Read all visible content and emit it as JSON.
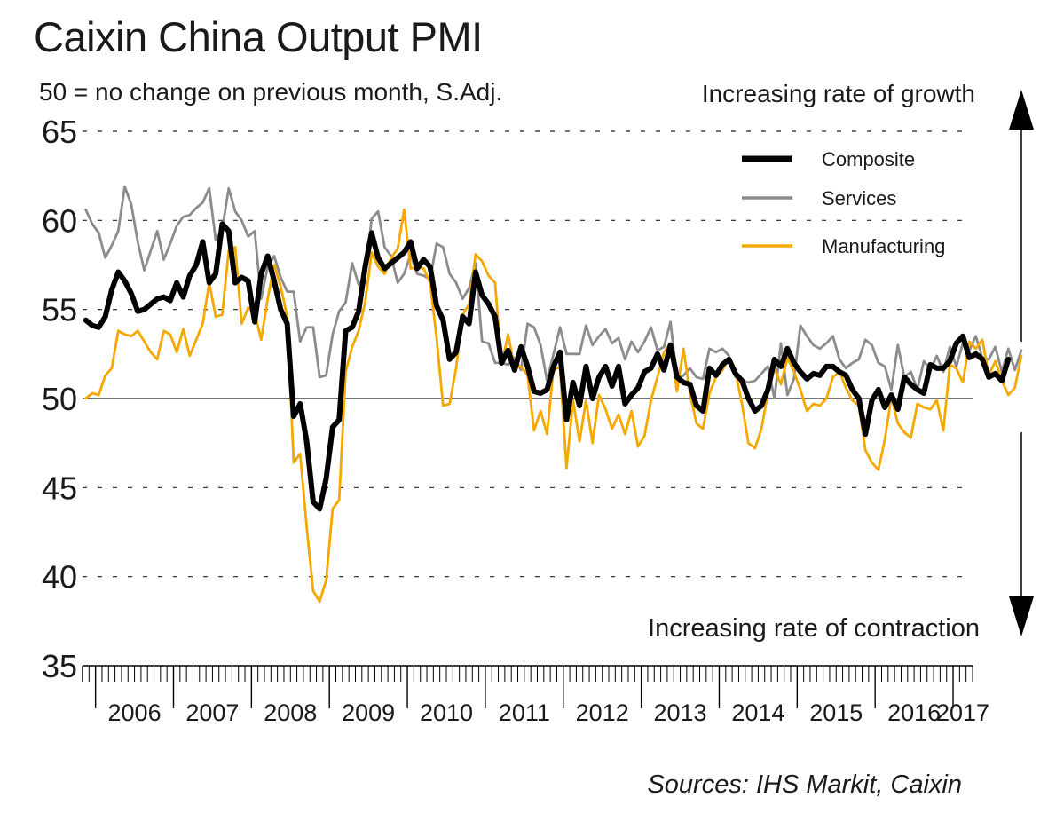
{
  "chart_data": {
    "type": "line",
    "title": "Caixin China Output PMI",
    "subtitle": "50 = no change on previous month, S.Adj.",
    "annotation_up": "Increasing rate of growth",
    "annotation_down": "Increasing rate of contraction",
    "source": "Sources: IHS Markit, Caixin",
    "xlabel": "",
    "ylabel": "",
    "ylim": [
      35,
      65
    ],
    "yticks": [
      35,
      40,
      45,
      50,
      55,
      60,
      65
    ],
    "reference_line": 50,
    "x_start": "2005-11",
    "x_end": "2017-03",
    "year_labels": [
      "2006",
      "2007",
      "2008",
      "2009",
      "2010",
      "2011",
      "2012",
      "2013",
      "2014",
      "2015",
      "2016",
      "2017"
    ],
    "legend": [
      "Composite",
      "Services",
      "Manufacturing"
    ],
    "legend_position": "top-right",
    "colors": {
      "Composite": "#000000",
      "Services": "#8c8c8c",
      "Manufacturing": "#f5a800",
      "grid": "#333333"
    },
    "series": [
      {
        "name": "Composite",
        "values": [
          54.4,
          54.1,
          54.0,
          54.6,
          56.1,
          57.1,
          56.6,
          55.9,
          54.9,
          55.0,
          55.3,
          55.6,
          55.7,
          55.5,
          56.5,
          55.7,
          56.9,
          57.5,
          58.8,
          56.5,
          57.0,
          59.8,
          59.4,
          56.5,
          56.8,
          56.6,
          54.3,
          57.0,
          58.0,
          56.6,
          55.0,
          54.2,
          49.0,
          49.7,
          47.6,
          44.2,
          43.8,
          45.5,
          48.4,
          48.8,
          53.8,
          54.0,
          54.9,
          57.4,
          59.3,
          57.9,
          57.3,
          57.6,
          57.9,
          58.2,
          58.8,
          57.3,
          57.8,
          57.4,
          55.2,
          54.4,
          52.2,
          52.6,
          54.6,
          54.2,
          57.1,
          55.8,
          55.3,
          54.6,
          52.0,
          52.7,
          51.6,
          52.9,
          51.8,
          50.4,
          50.3,
          50.5,
          51.8,
          52.6,
          48.8,
          50.9,
          49.6,
          51.8,
          50.0,
          51.2,
          51.8,
          50.7,
          51.8,
          49.7,
          50.2,
          50.6,
          51.5,
          51.7,
          52.5,
          51.6,
          53.0,
          51.2,
          50.9,
          50.8,
          49.6,
          49.3,
          51.7,
          51.3,
          51.9,
          52.2,
          51.4,
          51.0,
          50.0,
          49.3,
          49.6,
          50.5,
          52.2,
          51.8,
          52.8,
          52.0,
          51.5,
          51.1,
          51.4,
          51.3,
          51.8,
          51.8,
          51.5,
          51.3,
          50.5,
          50.0,
          48.0,
          49.9,
          50.5,
          49.5,
          50.2,
          49.4,
          51.2,
          50.8,
          50.5,
          50.3,
          51.9,
          51.7,
          51.7,
          52.1,
          53.1,
          53.5,
          52.3,
          52.5,
          52.2,
          51.2,
          51.4,
          51.0,
          52.2
        ]
      },
      {
        "name": "Services",
        "values": [
          60.6,
          59.8,
          59.3,
          57.9,
          58.6,
          59.4,
          61.9,
          60.9,
          58.8,
          57.2,
          58.3,
          59.4,
          57.8,
          58.7,
          59.7,
          60.2,
          60.3,
          60.7,
          61.0,
          61.8,
          58.9,
          59.5,
          61.8,
          60.5,
          60.0,
          59.1,
          59.4,
          55.6,
          57.4,
          58.0,
          56.8,
          56.0,
          56.0,
          53.2,
          54.0,
          54.0,
          51.2,
          51.3,
          53.6,
          54.9,
          55.4,
          57.6,
          56.4,
          56.8,
          60.1,
          60.5,
          58.5,
          58.0,
          56.5,
          57.0,
          58.1,
          57.0,
          56.9,
          56.7,
          58.7,
          58.5,
          57.0,
          56.5,
          55.6,
          56.2,
          57.6,
          53.2,
          53.1,
          52.0,
          52.0,
          51.9,
          52.3,
          51.6,
          54.2,
          54.0,
          53.0,
          51.0,
          52.5,
          54.0,
          52.5,
          52.5,
          52.5,
          54.1,
          53.0,
          53.5,
          53.9,
          53.1,
          53.4,
          52.2,
          53.2,
          52.6,
          53.2,
          54.0,
          52.7,
          52.9,
          54.3,
          51.1,
          51.3,
          51.7,
          51.2,
          51.1,
          52.8,
          52.6,
          52.8,
          52.4,
          51.2,
          51.0,
          50.9,
          51.0,
          51.4,
          51.8,
          50.0,
          53.1,
          50.2,
          51.1,
          54.1,
          53.5,
          53.0,
          52.8,
          53.1,
          53.5,
          52.2,
          51.7,
          52.0,
          52.2,
          53.3,
          53.0,
          52.0,
          51.8,
          50.5,
          53.0,
          51.2,
          51.5,
          50.5,
          52.1,
          51.6,
          52.4,
          51.5,
          52.9,
          51.8,
          53.1,
          52.7,
          53.5,
          52.3,
          52.2,
          52.9,
          51.5,
          52.8,
          51.6,
          52.7
        ]
      },
      {
        "name": "Manufacturing",
        "values": [
          50.0,
          50.3,
          50.2,
          51.3,
          51.7,
          53.8,
          53.6,
          53.5,
          53.8,
          53.2,
          52.6,
          52.2,
          53.8,
          53.6,
          52.6,
          53.9,
          52.4,
          53.3,
          54.2,
          56.5,
          54.6,
          54.7,
          58.3,
          58.5,
          54.2,
          55.1,
          54.8,
          53.3,
          55.6,
          57.5,
          56.3,
          54.6,
          46.4,
          46.9,
          42.8,
          39.2,
          38.6,
          39.8,
          43.8,
          44.3,
          51.5,
          52.9,
          53.8,
          55.4,
          58.2,
          57.4,
          57.0,
          57.9,
          58.4,
          60.6,
          57.3,
          57.4,
          57.3,
          56.5,
          53.4,
          49.6,
          49.7,
          51.7,
          54.7,
          55.3,
          58.1,
          57.7,
          56.9,
          56.5,
          51.9,
          53.6,
          51.7,
          51.8,
          51.3,
          48.2,
          49.3,
          48.0,
          51.7,
          51.7,
          46.1,
          49.9,
          47.6,
          49.9,
          47.5,
          50.2,
          49.4,
          48.3,
          49.1,
          48.0,
          49.3,
          47.3,
          47.9,
          49.9,
          51.2,
          52.6,
          53.1,
          50.4,
          52.8,
          50.3,
          48.6,
          48.3,
          50.3,
          51.2,
          51.6,
          52.3,
          51.5,
          49.7,
          47.5,
          47.2,
          48.3,
          50.3,
          51.7,
          50.8,
          52.3,
          51.5,
          50.5,
          49.3,
          49.7,
          49.6,
          50.0,
          51.2,
          51.5,
          50.6,
          49.9,
          49.6,
          47.1,
          46.4,
          46.0,
          47.7,
          50.1,
          48.6,
          48.1,
          47.8,
          49.7,
          49.5,
          49.4,
          49.9,
          48.2,
          51.9,
          51.7,
          50.9,
          53.2,
          52.8,
          53.3,
          51.3,
          52.1,
          51.0,
          50.2,
          50.6,
          52.4
        ]
      }
    ]
  }
}
